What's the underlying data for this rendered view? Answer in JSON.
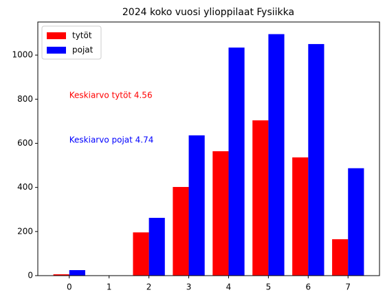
{
  "chart_data": {
    "type": "bar",
    "title": "2024 koko vuosi ylioppilaat Fysiikka",
    "x": [
      0,
      1,
      2,
      3,
      4,
      5,
      6,
      7
    ],
    "series": [
      {
        "name": "tytöt",
        "color": "#ff0000",
        "values": [
          6,
          0,
          196,
          402,
          564,
          704,
          536,
          165
        ]
      },
      {
        "name": "pojat",
        "color": "#0000ff",
        "values": [
          25,
          0,
          262,
          636,
          1034,
          1095,
          1050,
          487
        ]
      }
    ],
    "annotations": [
      {
        "text": "Keskiarvo tytöt 4.56",
        "color": "#ff0000"
      },
      {
        "text": "Keskiarvo pojat 4.74",
        "color": "#0000ff"
      }
    ],
    "xlim": [
      -0.79,
      7.79
    ],
    "xticks": [
      0,
      1,
      2,
      3,
      4,
      5,
      6,
      7
    ],
    "ylim": [
      0,
      1150
    ],
    "yticks": [
      0,
      200,
      400,
      600,
      800,
      1000
    ],
    "legend": "upper-left"
  }
}
